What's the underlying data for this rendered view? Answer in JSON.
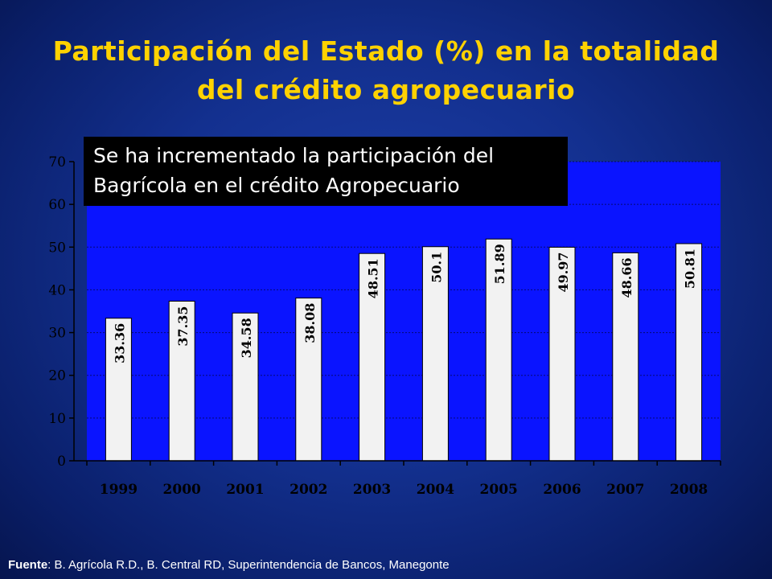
{
  "title": {
    "line1": "Participación del Estado (%) en la totalidad",
    "line2": "del crédito agropecuario"
  },
  "callout": {
    "line1": "Se ha incrementado la participación del",
    "line2": "Bagrícola en el crédito Agropecuario"
  },
  "source": {
    "label": "Fuente",
    "text": ": B. Agrícola R.D., B. Central RD, Superintendencia de Bancos, Manegonte"
  },
  "colors": {
    "plot_bg": "#0a14ff",
    "bar_fill": "#f2f2f2",
    "title": "#ffd200"
  },
  "chart_data": {
    "type": "bar",
    "categories": [
      "1999",
      "2000",
      "2001",
      "2002",
      "2003",
      "2004",
      "2005",
      "2006",
      "2007",
      "2008"
    ],
    "values": [
      33.36,
      37.35,
      34.58,
      38.08,
      48.51,
      50.1,
      51.89,
      49.97,
      48.66,
      50.81
    ],
    "data_labels": [
      "33.36",
      "37.35",
      "34.58",
      "38.08",
      "48.51",
      "50.1",
      "51.89",
      "49.97",
      "48.66",
      "50.81"
    ],
    "yticks": [
      "0",
      "10",
      "20",
      "30",
      "40",
      "50",
      "60",
      "70"
    ],
    "ylim": [
      0,
      70
    ],
    "grid": true,
    "data_label_orientation": "vertical",
    "xlabel": "",
    "ylabel": ""
  }
}
